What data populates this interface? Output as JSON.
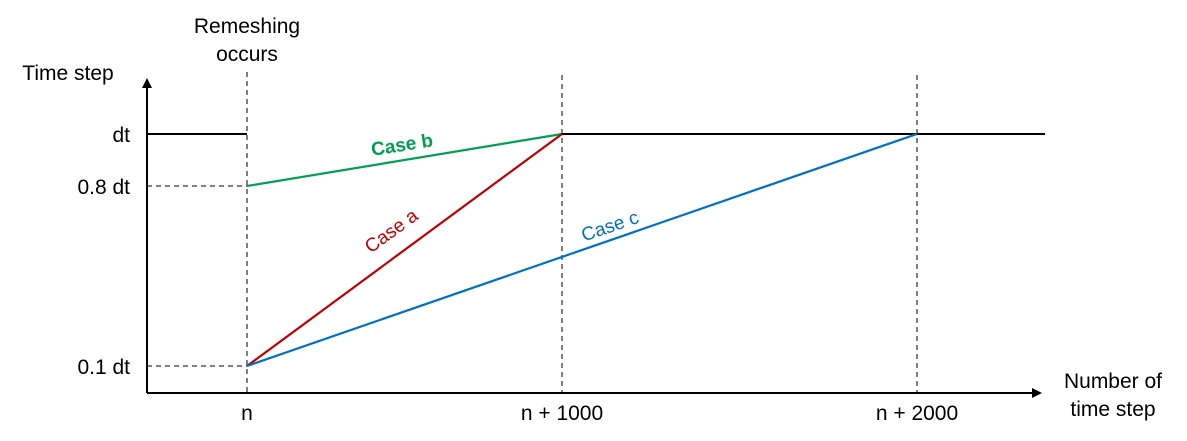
{
  "annotation": {
    "line1": "Remeshing",
    "line2": "occurs"
  },
  "y_axis": {
    "title": "Time step",
    "ticks": [
      "dt",
      "0.8 dt",
      "0.1 dt"
    ]
  },
  "x_axis": {
    "title_line1": "Number of",
    "title_line2": "time step",
    "ticks": [
      "n",
      "n + 1000",
      "n + 2000"
    ]
  },
  "cases": [
    {
      "label": "Case a",
      "color": "#c00000",
      "from": [
        0,
        0.1
      ],
      "to": [
        1000,
        1.0
      ]
    },
    {
      "label": "Case b",
      "color": "#00a050",
      "from": [
        0,
        0.8
      ],
      "to": [
        1000,
        1.0
      ]
    },
    {
      "label": "Case c",
      "color": "#0070c0",
      "from": [
        0,
        0.1
      ],
      "to": [
        2000,
        1.0
      ]
    }
  ],
  "baseline_color": "#000000"
}
